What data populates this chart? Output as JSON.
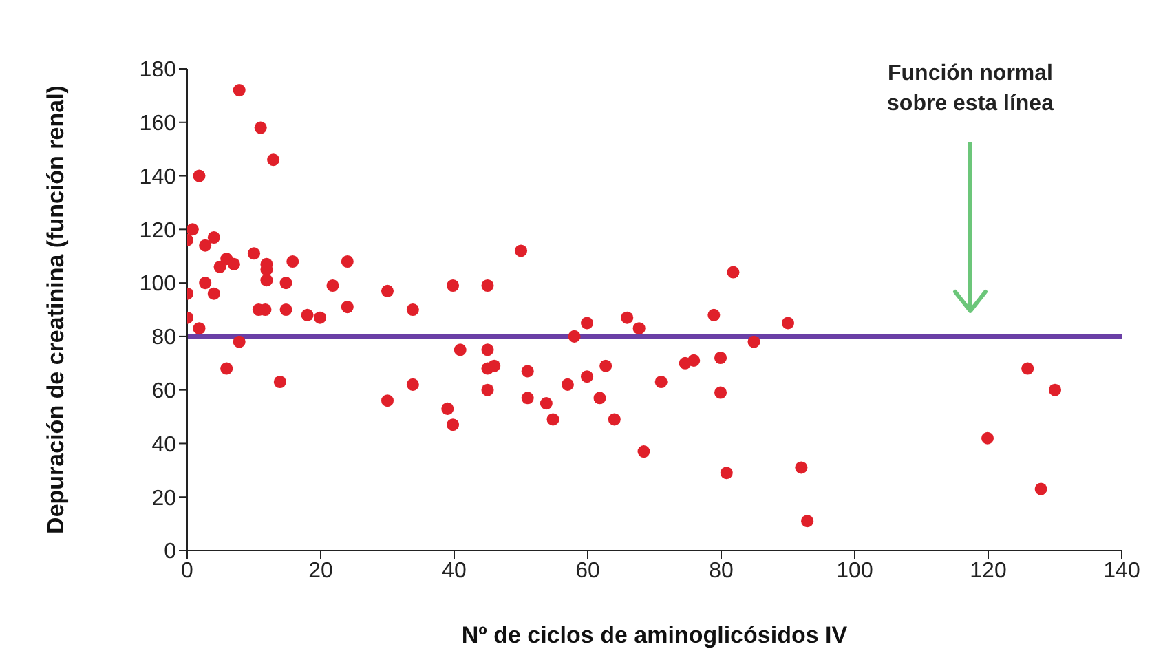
{
  "chart_data": {
    "type": "scatter",
    "xlabel": "Nº de ciclos de aminoglicósidos IV",
    "ylabel": "Depuración de creatinina (función renal)",
    "xlim": [
      0,
      140
    ],
    "xticks": [
      0,
      20,
      40,
      60,
      80,
      100,
      120,
      140
    ],
    "ylim": [
      0,
      180
    ],
    "yticks": [
      0,
      20,
      40,
      60,
      80,
      100,
      120,
      140,
      160,
      180
    ],
    "grid": false,
    "legend": false,
    "marker": "circle",
    "series": [
      {
        "color": "#e0202a",
        "x": [
          7.8,
          11,
          12.9,
          1.8,
          0.8,
          0,
          2.7,
          4,
          10,
          15.8,
          24,
          5.9,
          4.9,
          7,
          11.9,
          11.9,
          11.9,
          14.8,
          2.7,
          21.8,
          30,
          0,
          4,
          10.7,
          11.7,
          14.8,
          24,
          33.8,
          18,
          19.9,
          0,
          1.8,
          7.8,
          5.9,
          13.9,
          30,
          33.8,
          39.8,
          45,
          50,
          40.9,
          45,
          45,
          46,
          51,
          45,
          39,
          39.8,
          51,
          53.8,
          54.8,
          57,
          58,
          59.9,
          59.9,
          62.7,
          61.8,
          64,
          65.9,
          67.7,
          68.4,
          71,
          74.6,
          75.9,
          78.9,
          81.8,
          79.9,
          79.9,
          84.9,
          90,
          80.8,
          92,
          92.9,
          125.9,
          130,
          119.9,
          127.9
        ],
        "values": [
          172,
          158,
          146,
          140,
          120,
          116,
          114,
          117,
          111,
          108,
          108,
          109,
          106,
          107,
          107,
          105,
          101,
          100,
          100,
          99,
          97,
          96,
          96,
          90,
          90,
          90,
          91,
          90,
          88,
          87,
          87,
          83,
          78,
          68,
          63,
          56,
          62,
          99,
          99,
          112,
          75,
          75,
          68,
          69,
          67,
          60,
          53,
          47,
          57,
          55,
          49,
          62,
          80,
          85,
          65,
          69,
          57,
          49,
          87,
          83,
          37,
          63,
          70,
          71,
          88,
          104,
          72,
          59,
          78,
          85,
          29,
          31,
          11,
          68,
          60,
          42,
          23
        ]
      }
    ],
    "ref_lines": [
      {
        "axis": "y",
        "value": 80,
        "color": "#6a3fa6",
        "line_style": "solid"
      }
    ],
    "annotations": [
      "Función normal\nsobre esta línea"
    ]
  }
}
